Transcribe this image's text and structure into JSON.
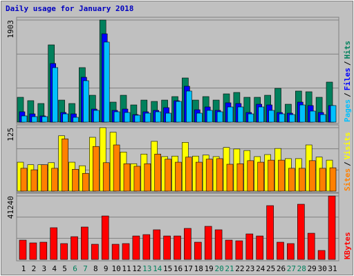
{
  "title": "Daily usage for January 2018",
  "legend_separator": "/",
  "categories": [
    "1",
    "2",
    "3",
    "4",
    "5",
    "6",
    "7",
    "8",
    "9",
    "10",
    "11",
    "12",
    "13",
    "14",
    "15",
    "16",
    "17",
    "18",
    "19",
    "20",
    "21",
    "22",
    "23",
    "24",
    "25",
    "26",
    "27",
    "28",
    "29",
    "30",
    "31"
  ],
  "category_colors": [
    "#000000",
    "#000000",
    "#000000",
    "#000000",
    "#000000",
    "#00805c",
    "#00805c",
    "#000000",
    "#000000",
    "#000000",
    "#000000",
    "#000000",
    "#00805c",
    "#00805c",
    "#000000",
    "#000000",
    "#000000",
    "#000000",
    "#000000",
    "#00805c",
    "#00805c",
    "#000000",
    "#000000",
    "#000000",
    "#000000",
    "#000000",
    "#00805c",
    "#00805c",
    "#000000",
    "#000000",
    "#000000"
  ],
  "chart_data": [
    {
      "type": "bar",
      "ylim": [
        0,
        1903
      ],
      "yticks": [
        1903
      ],
      "series": [
        {
          "name": "Hits",
          "color": "#00805c",
          "values": [
            463,
            400,
            347,
            1440,
            411,
            347,
            1016,
            501,
            1903,
            373,
            501,
            321,
            411,
            386,
            411,
            476,
            823,
            411,
            476,
            411,
            527,
            553,
            463,
            463,
            501,
            630,
            334,
            579,
            566,
            463,
            746
          ]
        },
        {
          "name": "Files",
          "color": "#0000ff",
          "values": [
            193,
            154,
            116,
            1093,
            180,
            154,
            836,
            244,
            1646,
            219,
            244,
            141,
            193,
            219,
            270,
            399,
            669,
            231,
            283,
            219,
            360,
            347,
            180,
            334,
            321,
            180,
            167,
            373,
            309,
            180,
            309
          ]
        },
        {
          "name": "Pages",
          "color": "#00c0ff",
          "values": [
            116,
            103,
            103,
            1016,
            154,
            90,
            772,
            219,
            1492,
            193,
            180,
            129,
            167,
            193,
            167,
            386,
            579,
            167,
            219,
            193,
            283,
            283,
            154,
            283,
            219,
            154,
            141,
            321,
            206,
            141,
            309
          ]
        }
      ]
    },
    {
      "type": "bar",
      "ylim": [
        0,
        125
      ],
      "yticks": [
        125
      ],
      "series": [
        {
          "name": "Visits",
          "color": "#ffff00",
          "values": [
            57,
            52,
            52,
            56,
            109,
            57,
            50,
            106,
            125,
            116,
            77,
            54,
            73,
            98,
            68,
            69,
            96,
            69,
            71,
            68,
            86,
            83,
            80,
            68,
            72,
            84,
            64,
            64,
            91,
            67,
            61
          ]
        },
        {
          "name": "Sites",
          "color": "#ff8000",
          "values": [
            45,
            42,
            52,
            45,
            103,
            43,
            35,
            88,
            56,
            91,
            54,
            49,
            54,
            73,
            63,
            57,
            67,
            57,
            63,
            64,
            53,
            54,
            60,
            57,
            61,
            61,
            45,
            45,
            60,
            45,
            46
          ]
        }
      ]
    },
    {
      "type": "bar",
      "ylim": [
        0,
        41240
      ],
      "yticks": [
        41240
      ],
      "series": [
        {
          "name": "KBytes",
          "color": "#ff0000",
          "values": [
            12552,
            10759,
            11207,
            20622,
            10311,
            14793,
            21070,
            9863,
            28243,
            9863,
            10311,
            15242,
            16139,
            19277,
            15242,
            15242,
            20174,
            11207,
            21518,
            19277,
            12552,
            12104,
            16587,
            15242,
            34967,
            11207,
            10311,
            35864,
            17035,
            5828,
            41240
          ]
        }
      ]
    }
  ]
}
